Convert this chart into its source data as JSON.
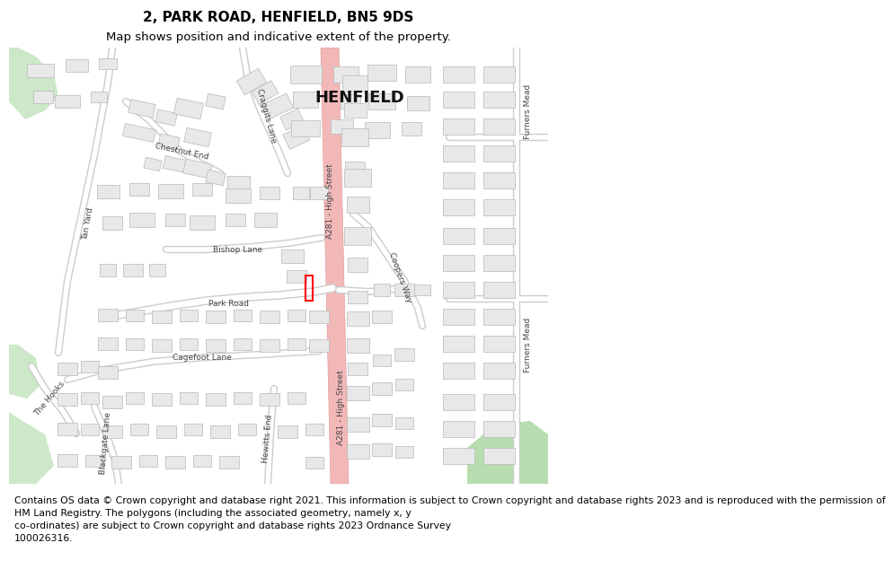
{
  "title_line1": "2, PARK ROAD, HENFIELD, BN5 9DS",
  "title_line2": "Map shows position and indicative extent of the property.",
  "copyright_lines": [
    "Contains OS data © Crown copyright and database right 2021. This information is subject to Crown copyright and database rights 2023 and is reproduced with the permission of",
    "HM Land Registry. The polygons (including the associated geometry, namely x, y",
    "co-ordinates) are subject to Crown copyright and database rights 2023 Ordnance Survey",
    "100026316."
  ],
  "title_fontsize": 11,
  "subtitle_fontsize": 9.5,
  "copyright_fontsize": 7.8,
  "bg_color": "#ffffff",
  "map_bg": "#ffffff",
  "road_major_color": "#f2b8b8",
  "road_minor_color": "#ffffff",
  "road_outline_color": "#cccccc",
  "building_color": "#e8e8e8",
  "building_outline": "#b8b8b8",
  "green_color1": "#cce8c8",
  "green_color2": "#b8ddb0",
  "property_rect_color": "#ff0000",
  "text_color": "#000000",
  "label_color": "#444444"
}
